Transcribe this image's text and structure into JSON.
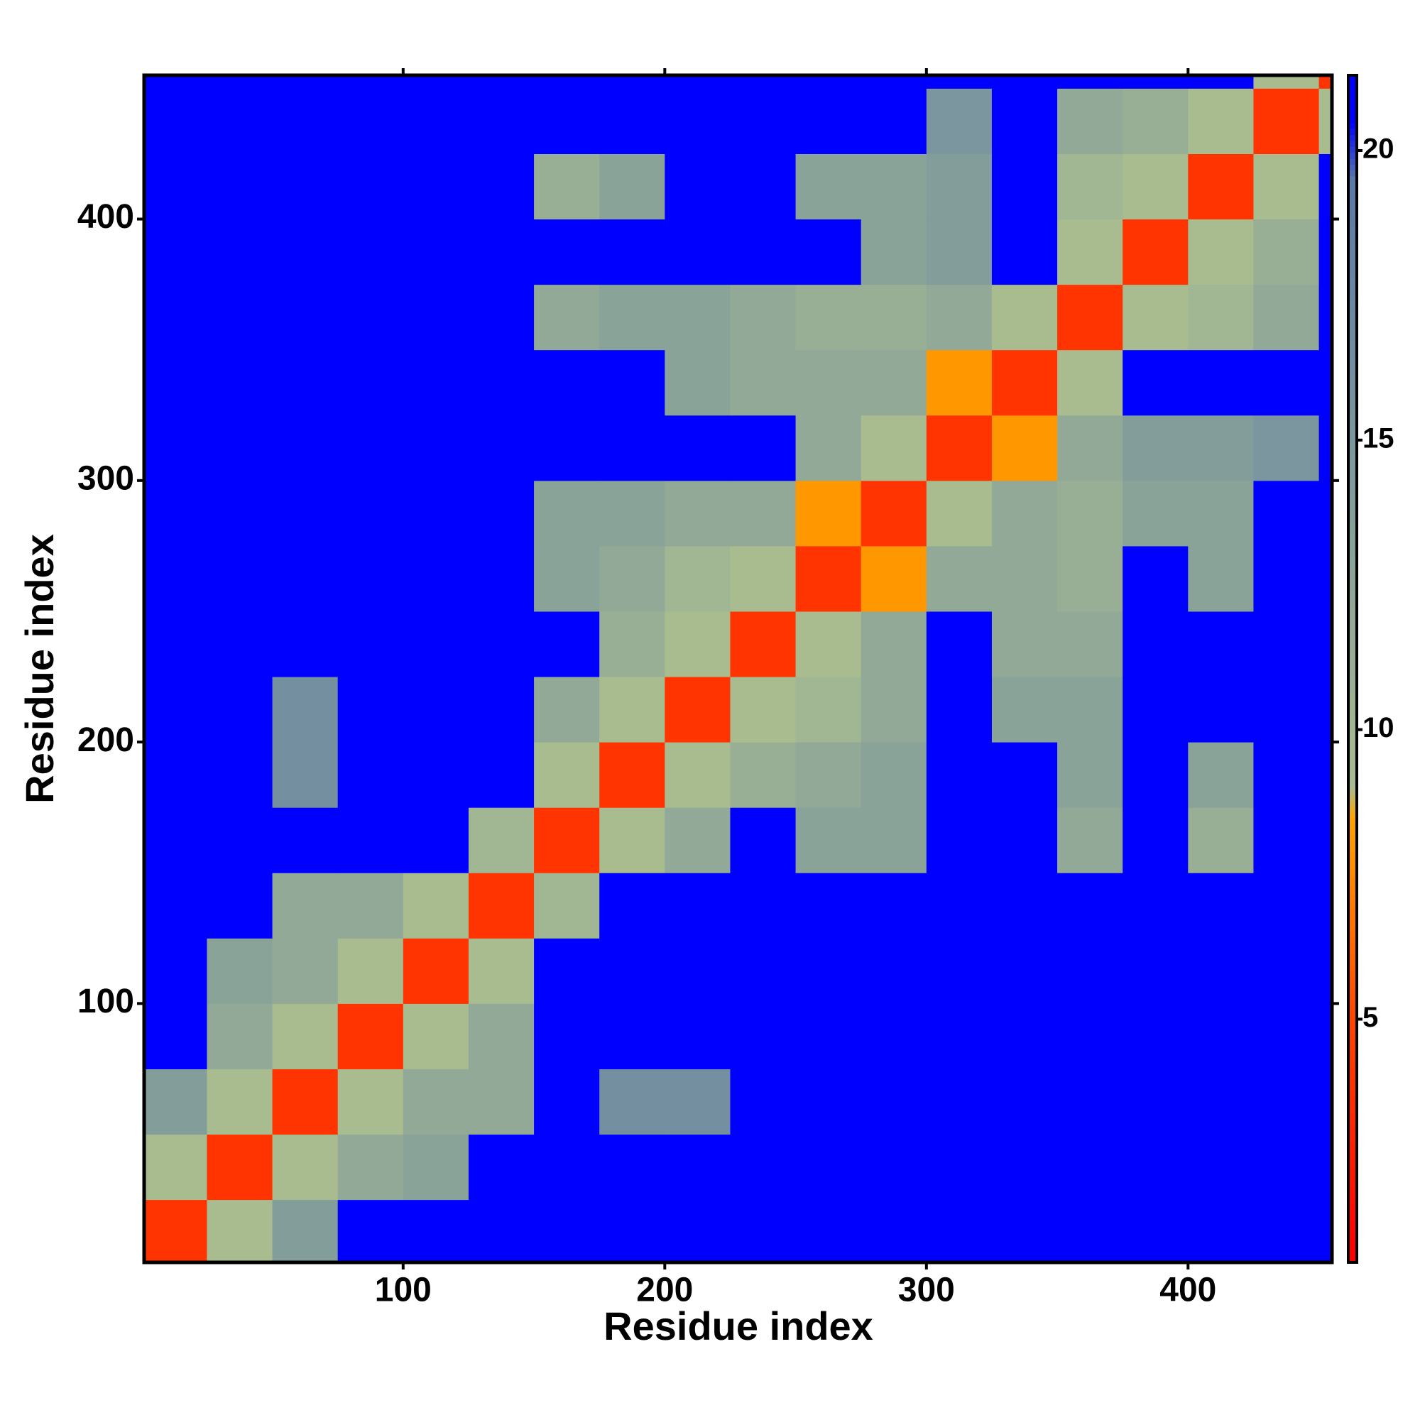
{
  "chart_data": {
    "type": "heatmap",
    "xlabel": "Residue index",
    "ylabel": "Residue index",
    "x": [
      0,
      25,
      50,
      75,
      100,
      125,
      150,
      175,
      200,
      225,
      250,
      275,
      300,
      325,
      350,
      375,
      400,
      425,
      450,
      455
    ],
    "y": [
      0,
      25,
      50,
      75,
      100,
      125,
      150,
      175,
      200,
      225,
      250,
      275,
      300,
      325,
      350,
      375,
      400,
      425,
      450,
      455
    ],
    "z": [
      [
        4,
        9,
        14,
        21,
        21,
        21,
        21,
        21,
        21,
        21,
        21,
        21,
        21,
        21,
        21,
        21,
        21,
        21,
        21
      ],
      [
        9,
        4,
        9,
        12,
        13,
        21,
        21,
        21,
        21,
        21,
        21,
        21,
        21,
        21,
        21,
        21,
        21,
        21,
        21
      ],
      [
        14,
        9,
        4,
        9,
        12,
        12,
        21,
        16,
        16,
        21,
        21,
        21,
        21,
        21,
        21,
        21,
        21,
        21,
        21
      ],
      [
        21,
        12,
        9,
        4,
        9,
        12,
        21,
        21,
        21,
        21,
        21,
        21,
        21,
        21,
        21,
        21,
        21,
        21,
        21
      ],
      [
        21,
        13,
        12,
        9,
        4,
        9,
        21,
        21,
        21,
        21,
        21,
        21,
        21,
        21,
        21,
        21,
        21,
        21,
        21
      ],
      [
        21,
        21,
        12,
        12,
        9,
        4,
        10,
        21,
        21,
        21,
        21,
        21,
        21,
        21,
        21,
        21,
        21,
        21,
        21
      ],
      [
        21,
        21,
        21,
        21,
        21,
        10,
        4,
        9,
        12,
        21,
        13,
        13,
        21,
        21,
        12,
        21,
        11,
        21,
        21
      ],
      [
        21,
        21,
        16,
        21,
        21,
        21,
        9,
        4,
        9,
        11,
        12,
        13,
        21,
        21,
        13,
        21,
        13,
        21,
        21
      ],
      [
        21,
        21,
        16,
        21,
        21,
        21,
        12,
        9,
        4,
        9,
        10,
        12,
        21,
        13,
        13,
        21,
        21,
        21,
        21
      ],
      [
        21,
        21,
        21,
        21,
        21,
        21,
        21,
        11,
        9,
        4,
        9,
        12,
        21,
        12,
        12,
        21,
        21,
        21,
        21
      ],
      [
        21,
        21,
        21,
        21,
        21,
        21,
        13,
        12,
        10,
        9,
        4,
        8,
        12,
        12,
        11,
        21,
        13,
        21,
        21
      ],
      [
        21,
        21,
        21,
        21,
        21,
        21,
        13,
        13,
        12,
        12,
        8,
        4,
        9,
        12,
        11,
        13,
        13,
        21,
        21
      ],
      [
        21,
        21,
        21,
        21,
        21,
        21,
        21,
        21,
        21,
        21,
        12,
        9,
        4,
        8,
        12,
        14,
        14,
        15,
        21
      ],
      [
        21,
        21,
        21,
        21,
        21,
        21,
        21,
        21,
        13,
        12,
        12,
        12,
        8,
        4,
        9,
        21,
        21,
        21,
        21
      ],
      [
        21,
        21,
        21,
        21,
        21,
        21,
        12,
        13,
        13,
        12,
        11,
        11,
        12,
        9,
        4,
        9,
        10,
        12,
        21
      ],
      [
        21,
        21,
        21,
        21,
        21,
        21,
        21,
        21,
        21,
        21,
        21,
        13,
        14,
        21,
        9,
        4,
        9,
        11,
        21
      ],
      [
        21,
        21,
        21,
        21,
        21,
        21,
        11,
        13,
        21,
        21,
        13,
        13,
        14,
        21,
        10,
        9,
        4,
        9,
        21
      ],
      [
        21,
        21,
        21,
        21,
        21,
        21,
        21,
        21,
        21,
        21,
        21,
        21,
        15,
        21,
        12,
        11,
        9,
        4,
        9
      ],
      [
        21,
        21,
        21,
        21,
        21,
        21,
        21,
        21,
        21,
        21,
        21,
        21,
        21,
        21,
        21,
        21,
        21,
        9,
        4
      ]
    ],
    "xlim": [
      1,
      455
    ],
    "ylim": [
      1,
      455
    ],
    "xticks": [
      100,
      200,
      300,
      400
    ],
    "yticks": [
      100,
      200,
      300,
      400
    ],
    "colorbar": {
      "lim": [
        0.8,
        21.3
      ],
      "ticks": [
        5,
        10,
        15,
        20
      ]
    },
    "colorscale": [
      [
        1,
        "#ff0000"
      ],
      [
        5,
        "#ff4500"
      ],
      [
        8.5,
        "#ffa500"
      ],
      [
        9,
        "#a8bc90"
      ],
      [
        19.5,
        "#5a7aa8"
      ],
      [
        20.5,
        "#0000ff"
      ]
    ]
  }
}
